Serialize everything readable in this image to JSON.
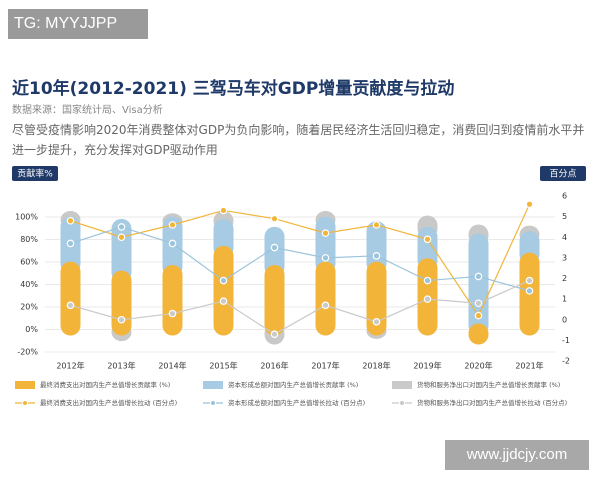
{
  "watermark_top": "TG: MYYJJPP",
  "watermark_bottom": "www.jjdcjy.com",
  "chart_data": {
    "type": "bar",
    "title": "近10年(2012-2021) 三驾马车对GDP增量贡献度与拉动",
    "source": "数据来源：国家统计局、Visa分析",
    "subtitle": "尽管受疫情影响2020年消费整体对GDP为负向影响，随着居民经济生活回归稳定，消费回归到疫情前水平并进一步提升，充分发挥对GDP驱动作用",
    "y_label": "贡献率%",
    "y2_label": "百分点",
    "categories": [
      "2012年",
      "2013年",
      "2014年",
      "2015年",
      "2016年",
      "2017年",
      "2018年",
      "2019年",
      "2020年",
      "2021年"
    ],
    "ylim": [
      -20,
      100
    ],
    "yticks": [
      {
        "value": -20,
        "label": "-20%"
      },
      {
        "value": 0,
        "label": "0%"
      },
      {
        "value": 20,
        "label": "20%"
      },
      {
        "value": 40,
        "label": "40%"
      },
      {
        "value": 60,
        "label": "60%"
      },
      {
        "value": 80,
        "label": "80%"
      },
      {
        "value": 100,
        "label": "100%"
      }
    ],
    "y2lim": [
      -2,
      6
    ],
    "y2ticks": [
      -2,
      -1,
      0,
      1,
      2,
      3,
      4,
      5,
      6
    ],
    "grid": true,
    "series": [
      {
        "name": "最终消费支出对国内生产总值增长贡献率 (%)",
        "type": "bar",
        "color": "#f2b53a",
        "values": [
          55,
          47,
          52,
          69,
          52,
          55,
          55,
          58,
          -8,
          63
        ]
      },
      {
        "name": "资本形成总额对国内生产总值增长贡献率 (%)",
        "type": "bar",
        "color": "#a7cbe2",
        "values": [
          40,
          46,
          43,
          24,
          34,
          40,
          36,
          28,
          80,
          19
        ]
      },
      {
        "name": "货物和服务净出口对国内生产总值增长贡献率 (%)",
        "type": "bar",
        "color": "#c9c9c9",
        "values": [
          5,
          -5,
          3,
          7,
          -8,
          5,
          -3,
          10,
          8,
          5
        ]
      },
      {
        "name": "最终消费支出对国内生产总值增长拉动 (百分点)",
        "type": "line",
        "axis": "y2",
        "color": "#f2b53a",
        "values": [
          4.8,
          4.0,
          4.6,
          5.3,
          4.9,
          4.2,
          4.6,
          3.9,
          0.2,
          5.6
        ]
      },
      {
        "name": "资本形成总额对国内生产总值增长拉动 (百分点)",
        "type": "line",
        "axis": "y2",
        "color": "#9cc3dc",
        "values": [
          3.7,
          4.5,
          3.7,
          1.9,
          3.5,
          3.0,
          3.1,
          1.9,
          2.1,
          1.4
        ]
      },
      {
        "name": "货物和服务净出口对国内生产总值增长拉动 (百分点)",
        "type": "line",
        "axis": "y2",
        "color": "#c9c9c9",
        "values": [
          0.7,
          0.0,
          0.3,
          0.9,
          -0.7,
          0.7,
          -0.1,
          1.0,
          0.8,
          1.9
        ]
      }
    ]
  }
}
